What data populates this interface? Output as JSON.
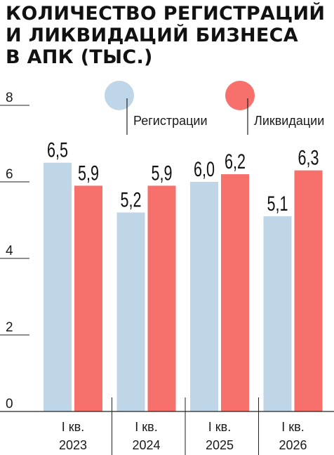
{
  "chart_data": {
    "type": "bar",
    "title": "КОЛИЧЕСТВО РЕГИСТРАЦИЙ\nИ ЛИКВИДАЦИЙ БИЗНЕСА\nВ АПК (ТЫС.)",
    "categories": [
      {
        "line1": "I кв.",
        "line2": "2023"
      },
      {
        "line1": "I кв.",
        "line2": "2024"
      },
      {
        "line1": "I кв.",
        "line2": "2025"
      },
      {
        "line1": "I кв.",
        "line2": "2026"
      }
    ],
    "series": [
      {
        "name": "Регистрации",
        "color": "#bfd6e8",
        "values": [
          6.5,
          5.2,
          6.0,
          5.1
        ],
        "labels": [
          "6,5",
          "5,2",
          "6,0",
          "5,1"
        ]
      },
      {
        "name": "Ликвидации",
        "color": "#f8706c",
        "values": [
          5.9,
          5.9,
          6.2,
          6.3
        ],
        "labels": [
          "5,9",
          "5,9",
          "6,2",
          "6,3"
        ]
      }
    ],
    "ylim": [
      0,
      8
    ],
    "yticks": [
      0,
      2,
      4,
      6,
      8
    ],
    "ytick_labels": [
      "0",
      "2",
      "4",
      "6",
      "8"
    ],
    "xlabel": "",
    "ylabel": "",
    "legend_position": "top",
    "grid": false
  }
}
